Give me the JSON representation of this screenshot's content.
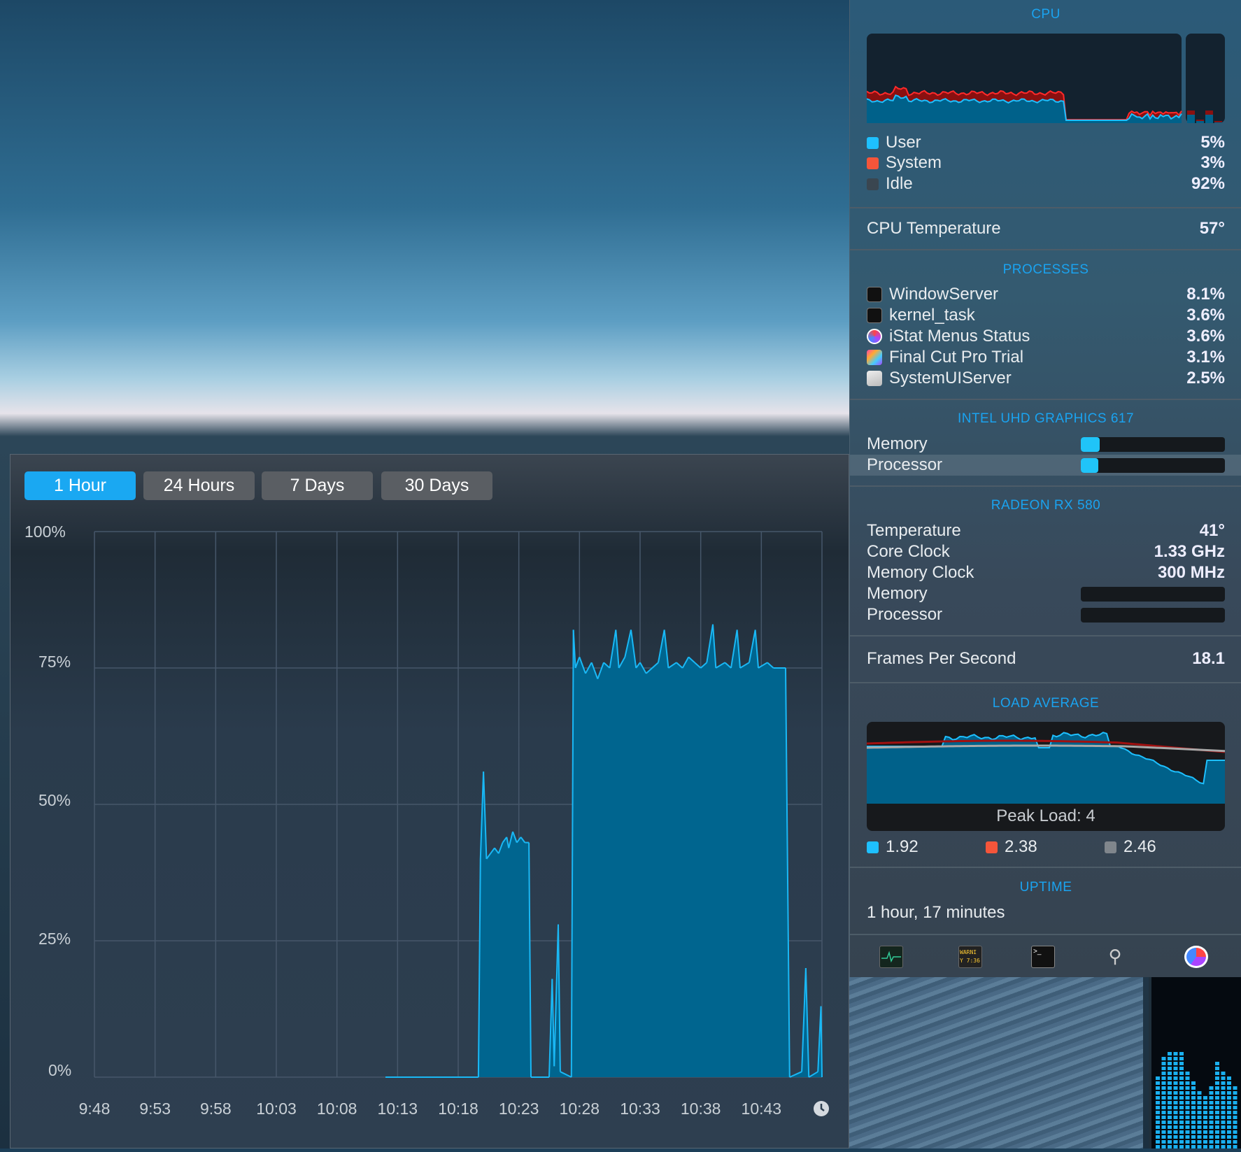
{
  "colors": {
    "accent": "#1aa3f0",
    "user": "#1ec0ff",
    "system": "#f5553a",
    "idle": "#3a4650",
    "chart_fill": "#00658f",
    "chart_line": "#1ab8f5"
  },
  "window": {
    "tabs": [
      {
        "label": "1 Hour",
        "active": true
      },
      {
        "label": "24 Hours",
        "active": false
      },
      {
        "label": "7 Days",
        "active": false
      },
      {
        "label": "30 Days",
        "active": false
      }
    ],
    "clock_icon": "clock-icon"
  },
  "chart_data": {
    "type": "area",
    "ylim": [
      0,
      100
    ],
    "yticks": [
      "100%",
      "75%",
      "50%",
      "25%",
      "0%"
    ],
    "xticks": [
      "9:48",
      "9:53",
      "9:58",
      "10:03",
      "10:08",
      "10:13",
      "10:18",
      "10:23",
      "10:28",
      "10:33",
      "10:38",
      "10:43"
    ],
    "xlim": [
      "9:48:00",
      "10:48:00"
    ],
    "grid": true,
    "points": [
      [
        "10:12:00",
        0
      ],
      [
        "10:19:40",
        0
      ],
      [
        "10:19:50",
        40
      ],
      [
        "10:20:05",
        56
      ],
      [
        "10:20:20",
        40
      ],
      [
        "10:20:40",
        41
      ],
      [
        "10:21:00",
        42
      ],
      [
        "10:21:20",
        41
      ],
      [
        "10:21:40",
        43
      ],
      [
        "10:22:00",
        44
      ],
      [
        "10:22:10",
        42
      ],
      [
        "10:22:30",
        45
      ],
      [
        "10:22:50",
        43
      ],
      [
        "10:23:10",
        44
      ],
      [
        "10:23:30",
        43
      ],
      [
        "10:23:50",
        43
      ],
      [
        "10:24:00",
        0
      ],
      [
        "10:25:30",
        0
      ],
      [
        "10:25:45",
        18
      ],
      [
        "10:25:55",
        2
      ],
      [
        "10:26:15",
        28
      ],
      [
        "10:26:25",
        1
      ],
      [
        "10:27:20",
        0
      ],
      [
        "10:27:30",
        82
      ],
      [
        "10:27:40",
        75
      ],
      [
        "10:28:00",
        77
      ],
      [
        "10:28:30",
        74
      ],
      [
        "10:29:00",
        76
      ],
      [
        "10:29:30",
        73
      ],
      [
        "10:30:00",
        76
      ],
      [
        "10:30:30",
        75
      ],
      [
        "10:31:00",
        82
      ],
      [
        "10:31:15",
        75
      ],
      [
        "10:31:45",
        77
      ],
      [
        "10:32:15",
        82
      ],
      [
        "10:32:40",
        75
      ],
      [
        "10:33:00",
        76
      ],
      [
        "10:33:30",
        74
      ],
      [
        "10:34:00",
        75
      ],
      [
        "10:34:30",
        76
      ],
      [
        "10:35:00",
        82
      ],
      [
        "10:35:20",
        75
      ],
      [
        "10:36:00",
        76
      ],
      [
        "10:36:30",
        75
      ],
      [
        "10:37:00",
        77
      ],
      [
        "10:37:30",
        76
      ],
      [
        "10:38:00",
        75
      ],
      [
        "10:38:30",
        76
      ],
      [
        "10:39:00",
        83
      ],
      [
        "10:39:15",
        75
      ],
      [
        "10:40:00",
        76
      ],
      [
        "10:40:30",
        75
      ],
      [
        "10:41:00",
        82
      ],
      [
        "10:41:15",
        75
      ],
      [
        "10:42:00",
        76
      ],
      [
        "10:42:30",
        82
      ],
      [
        "10:42:45",
        75
      ],
      [
        "10:43:30",
        76
      ],
      [
        "10:44:00",
        75
      ],
      [
        "10:45:00",
        75
      ],
      [
        "10:45:20",
        0
      ],
      [
        "10:46:20",
        1
      ],
      [
        "10:46:40",
        20
      ],
      [
        "10:46:55",
        0
      ],
      [
        "10:47:40",
        1
      ],
      [
        "10:47:55",
        13
      ],
      [
        "10:48:00",
        0
      ]
    ]
  },
  "panel": {
    "cpu": {
      "title": "CPU",
      "user_label": "User",
      "user": "5%",
      "system_label": "System",
      "system": "3%",
      "idle_label": "Idle",
      "idle": "92%"
    },
    "cpu_temp": {
      "label": "CPU Temperature",
      "value": "57°"
    },
    "processes": {
      "title": "PROCESSES",
      "items": [
        {
          "name": "WindowServer",
          "value": "8.1%",
          "icon": "terminal-icon"
        },
        {
          "name": "kernel_task",
          "value": "3.6%",
          "icon": "terminal-icon"
        },
        {
          "name": "iStat Menus Status",
          "value": "3.6%",
          "icon": "istat-icon"
        },
        {
          "name": "Final Cut Pro Trial",
          "value": "3.1%",
          "icon": "final-cut-icon"
        },
        {
          "name": "SystemUIServer",
          "value": "2.5%",
          "icon": "systemuiserver-icon"
        }
      ]
    },
    "intel": {
      "title": "INTEL UHD GRAPHICS 617",
      "memory_label": "Memory",
      "memory_pct": 13,
      "processor_label": "Processor",
      "processor_pct": 12
    },
    "radeon": {
      "title": "RADEON RX 580",
      "temp_label": "Temperature",
      "temp": "41°",
      "core_label": "Core Clock",
      "core": "1.33 GHz",
      "memclock_label": "Memory Clock",
      "memclock": "300 MHz",
      "memory_label": "Memory",
      "memory_pct": 0,
      "processor_label": "Processor",
      "processor_pct": 0
    },
    "fps": {
      "label": "Frames Per Second",
      "value": "18.1"
    },
    "load": {
      "title": "LOAD AVERAGE",
      "peak": "Peak Load: 4",
      "one": "1.92",
      "five": "2.38",
      "fifteen": "2.46"
    },
    "uptime": {
      "title": "UPTIME",
      "value": "1 hour, 17 minutes"
    },
    "footer_icons": [
      "activity-monitor-icon",
      "console-icon",
      "terminal-icon",
      "system-information-icon",
      "istat-menus-icon"
    ]
  }
}
